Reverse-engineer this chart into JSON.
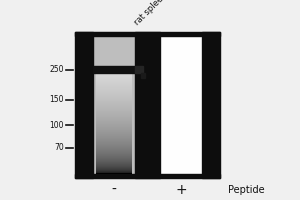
{
  "bg_color": "#f0f0f0",
  "lane1_bg": "#c8c8c8",
  "lane2_bg": "#f8f8f8",
  "black_strip": "#0d0d0d",
  "band_color": "#111111",
  "mw_markers": [
    250,
    150,
    100,
    70
  ],
  "lane_labels": [
    "-",
    "+"
  ],
  "peptide_label": "Peptide",
  "sample_label": "rat spleen",
  "fig_width": 3.0,
  "fig_height": 2.0,
  "dpi": 100
}
